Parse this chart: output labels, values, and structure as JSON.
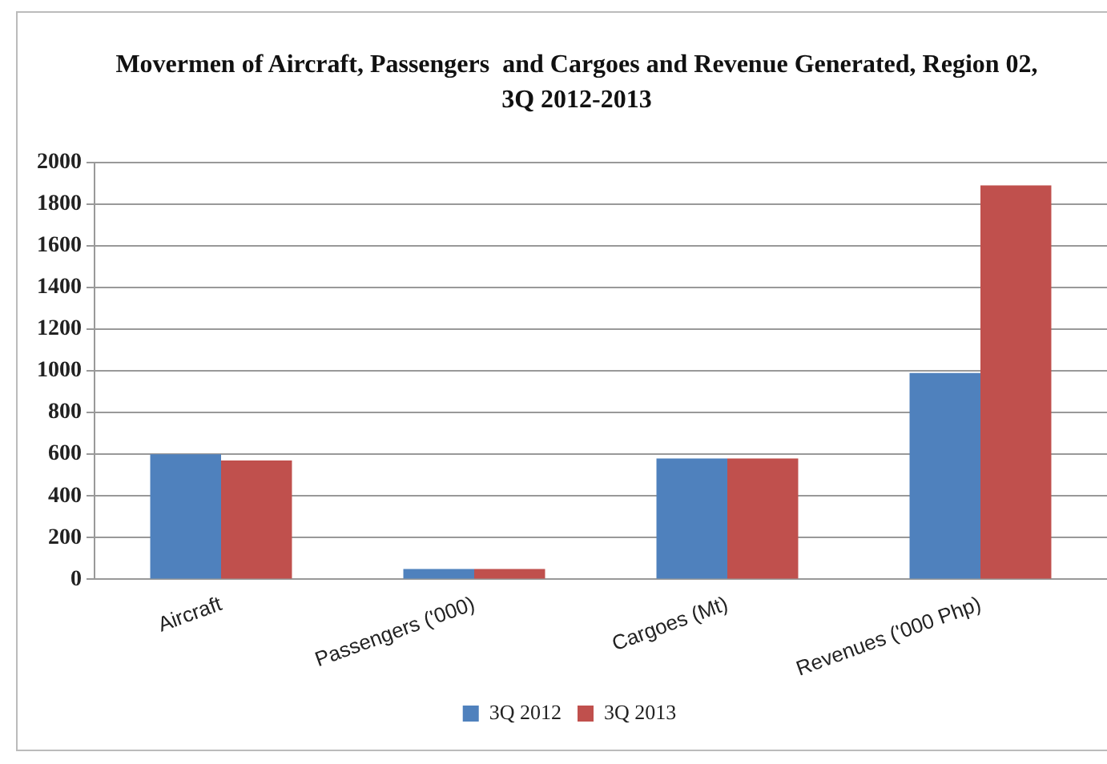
{
  "chart_data": {
    "type": "bar",
    "title": "Movermen of Aircraft, Passengers  and Cargoes and Revenue Generated, Region 02, 3Q 2012-2013",
    "categories": [
      "Aircraft",
      "Passengers ('000)",
      "Cargoes (Mt)",
      "Revenues ('000 Php)"
    ],
    "series": [
      {
        "name": "3Q 2012",
        "color": "#4f81bd",
        "values": [
          600,
          50,
          580,
          990
        ]
      },
      {
        "name": "3Q 2013",
        "color": "#c0504d",
        "values": [
          570,
          50,
          580,
          1890
        ]
      }
    ],
    "ylim": [
      0,
      2000
    ],
    "yticks": [
      0,
      200,
      400,
      600,
      800,
      1000,
      1200,
      1400,
      1600,
      1800,
      2000
    ],
    "grid": "y",
    "legend": "bottom"
  }
}
